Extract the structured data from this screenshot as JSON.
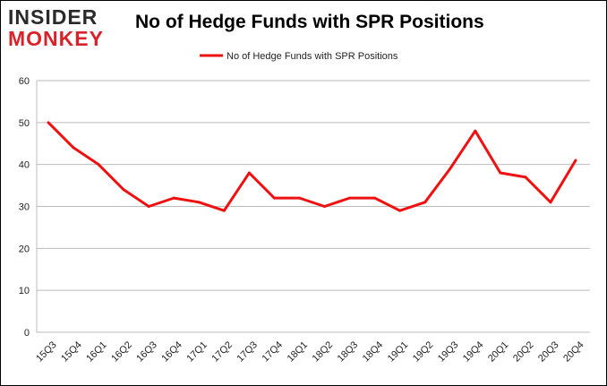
{
  "logo": {
    "line1": "INSIDER",
    "line2": "MONKEY"
  },
  "colors": {
    "series": "#ee1111",
    "grid": "#bbbbbb",
    "logo_red": "#d9232a"
  },
  "chart_data": {
    "type": "line",
    "title": "No of Hedge Funds with SPR Positions",
    "legend_position": "top-center",
    "grid": true,
    "ylim": [
      0,
      60
    ],
    "yticks": [
      0,
      10,
      20,
      30,
      40,
      50,
      60
    ],
    "categories": [
      "15Q3",
      "15Q4",
      "16Q1",
      "16Q2",
      "16Q3",
      "16Q4",
      "17Q1",
      "17Q2",
      "17Q3",
      "17Q4",
      "18Q1",
      "18Q2",
      "18Q3",
      "18Q4",
      "19Q1",
      "19Q2",
      "19Q3",
      "19Q4",
      "20Q1",
      "20Q2",
      "20Q3",
      "20Q4"
    ],
    "series": [
      {
        "name": "No of Hedge Funds with SPR Positions",
        "values": [
          50,
          44,
          40,
          34,
          30,
          32,
          31,
          29,
          38,
          32,
          32,
          30,
          32,
          32,
          29,
          31,
          39,
          48,
          38,
          37,
          31,
          41
        ]
      }
    ]
  }
}
